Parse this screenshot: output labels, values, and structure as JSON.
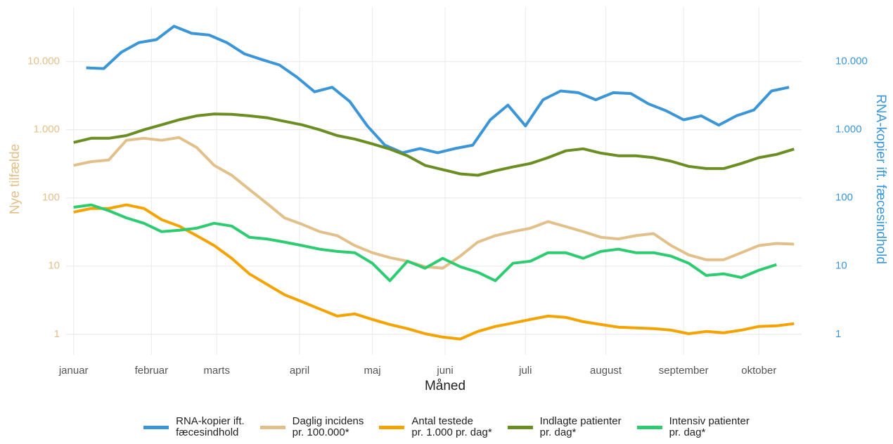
{
  "chart_data": {
    "type": "line",
    "log_y": true,
    "grid": true,
    "legend": "bottom",
    "xlabel": "Måned",
    "ylabel": "Nye tilfælde",
    "y2label": "RNA-kopier ift. fæcesindhold",
    "ylabel_color": "#e3c08a",
    "y2label_color": "#3a96d8",
    "xlim": [
      -3,
      290
    ],
    "xticks": [
      {
        "value": 0,
        "label": "januar"
      },
      {
        "value": 31,
        "label": "februar"
      },
      {
        "value": 57,
        "label": "marts"
      },
      {
        "value": 90,
        "label": "april"
      },
      {
        "value": 119,
        "label": "maj"
      },
      {
        "value": 148,
        "label": "juni"
      },
      {
        "value": 180,
        "label": "juli"
      },
      {
        "value": 212,
        "label": "august"
      },
      {
        "value": 243,
        "label": "september"
      },
      {
        "value": 273,
        "label": "oktober"
      }
    ],
    "ylim": [
      0.5,
      80000
    ],
    "yticks": [
      1,
      10,
      100,
      {
        "value": 1000,
        "label": "1.000"
      },
      {
        "value": 10000,
        "label": "10.000"
      }
    ],
    "y2lim": [
      0.5,
      80000
    ],
    "y2ticks": [
      1,
      10,
      100,
      {
        "value": 1000,
        "label": "1.000"
      },
      {
        "value": 10000,
        "label": "10.000"
      }
    ],
    "series": [
      {
        "name": "RNA-kopier ift.\nfæcesindhold",
        "color": "#3a96d8",
        "axis": "y2",
        "x": [
          5,
          12,
          19,
          26,
          33,
          40,
          47,
          54,
          61,
          68,
          75,
          82,
          89,
          96,
          103,
          110,
          117,
          124,
          131,
          138,
          145,
          152,
          159,
          166,
          173,
          180,
          187,
          194,
          201,
          208,
          215,
          222,
          229,
          236,
          243,
          250,
          257,
          264,
          271,
          278,
          285
        ],
        "values": [
          8100,
          7900,
          13700,
          19000,
          21000,
          33000,
          26000,
          24500,
          19000,
          13000,
          10700,
          8900,
          5900,
          3600,
          4200,
          2600,
          1140,
          595,
          460,
          530,
          460,
          530,
          595,
          1400,
          2300,
          1140,
          2750,
          3700,
          3500,
          2750,
          3500,
          3400,
          2400,
          1900,
          1400,
          1600,
          1170,
          1600,
          1950,
          3700,
          4200
        ]
      },
      {
        "name": "Daglig incidens\npr. 100.000*",
        "color": "#e3c08a",
        "x": [
          0,
          7,
          14,
          21,
          28,
          35,
          42,
          49,
          56,
          63,
          70,
          77,
          84,
          91,
          98,
          105,
          112,
          119,
          126,
          133,
          140,
          147,
          154,
          161,
          168,
          175,
          182,
          189,
          196,
          203,
          210,
          217,
          224,
          231,
          238,
          245,
          252,
          259,
          266,
          273,
          280,
          287
        ],
        "values": [
          300,
          340,
          360,
          700,
          750,
          700,
          770,
          550,
          300,
          215,
          133,
          83,
          51,
          41,
          32,
          28,
          20,
          15.7,
          13.3,
          11.8,
          9.8,
          9.3,
          14,
          22.5,
          28,
          32,
          36,
          45,
          38,
          32,
          26.5,
          25,
          28,
          30,
          20,
          14.6,
          12.4,
          12.4,
          15.7,
          20,
          21.5,
          21
        ]
      },
      {
        "name": "Antal testede\npr. 1.000 pr. dag*",
        "color": "#f5a300",
        "x": [
          0,
          7,
          14,
          21,
          28,
          35,
          42,
          49,
          56,
          63,
          70,
          77,
          84,
          91,
          98,
          105,
          112,
          119,
          126,
          133,
          140,
          147,
          154,
          161,
          168,
          175,
          182,
          189,
          196,
          203,
          210,
          217,
          224,
          231,
          238,
          245,
          252,
          259,
          266,
          273,
          280,
          287
        ],
        "values": [
          62,
          70,
          70,
          79,
          70,
          48,
          38.6,
          28,
          20,
          13,
          7.7,
          5.4,
          3.8,
          3,
          2.35,
          1.85,
          1.99,
          1.65,
          1.39,
          1.21,
          1.02,
          0.91,
          0.85,
          1.1,
          1.3,
          1.46,
          1.65,
          1.85,
          1.77,
          1.53,
          1.39,
          1.27,
          1.24,
          1.21,
          1.15,
          1.02,
          1.1,
          1.05,
          1.15,
          1.3,
          1.33,
          1.43
        ]
      },
      {
        "name": "Indlagte patienter\npr. dag*",
        "color": "#6b8e23",
        "x": [
          0,
          7,
          14,
          21,
          28,
          35,
          42,
          49,
          56,
          63,
          70,
          77,
          84,
          91,
          98,
          105,
          112,
          119,
          126,
          133,
          140,
          147,
          154,
          161,
          168,
          175,
          182,
          189,
          196,
          203,
          210,
          217,
          224,
          231,
          238,
          245,
          252,
          259,
          266,
          273,
          280,
          287
        ],
        "values": [
          650,
          750,
          750,
          820,
          1000,
          1180,
          1400,
          1600,
          1700,
          1680,
          1600,
          1500,
          1330,
          1180,
          1000,
          820,
          730,
          620,
          520,
          415,
          300,
          260,
          225,
          215,
          250,
          285,
          320,
          390,
          490,
          525,
          455,
          415,
          415,
          390,
          345,
          290,
          270,
          270,
          320,
          390,
          435,
          520
        ]
      },
      {
        "name": "Intensiv patienter\npr. dag*",
        "color": "#2ecc71",
        "x": [
          0,
          7,
          14,
          21,
          28,
          35,
          42,
          49,
          56,
          63,
          70,
          77,
          84,
          91,
          98,
          105,
          112,
          119,
          126,
          133,
          140,
          147,
          154,
          161,
          168,
          175,
          182,
          189,
          196,
          203,
          210,
          217,
          224,
          231,
          238,
          245,
          252,
          259,
          266,
          273,
          280
        ],
        "values": [
          73,
          79,
          65,
          51,
          42.5,
          32,
          33.5,
          36,
          42.5,
          38.6,
          26.5,
          25,
          22.5,
          20,
          17.7,
          16.4,
          15.7,
          11,
          6.1,
          11.8,
          9.3,
          13,
          9.8,
          8.1,
          6.1,
          11,
          11.8,
          15.7,
          15.7,
          13,
          16.4,
          17.7,
          15.7,
          15.7,
          14,
          11,
          7.3,
          7.7,
          6.8,
          8.7,
          10.5
        ]
      }
    ]
  }
}
